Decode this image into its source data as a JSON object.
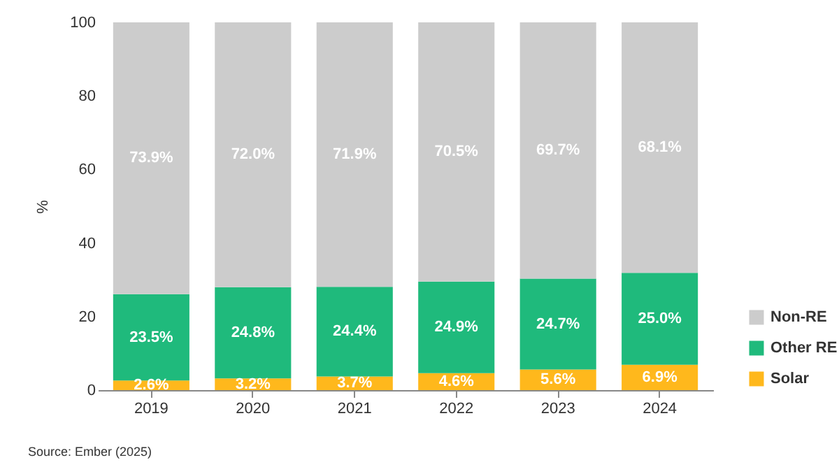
{
  "chart_data": {
    "type": "bar",
    "stacked": true,
    "ylabel": "%",
    "categories": [
      "2019",
      "2020",
      "2021",
      "2022",
      "2023",
      "2024"
    ],
    "series": [
      {
        "name": "Solar",
        "color": "#ffb81c",
        "values": [
          2.6,
          3.2,
          3.7,
          4.6,
          5.6,
          6.9
        ],
        "value_labels": [
          "2.6%",
          "3.2%",
          "3.7%",
          "4.6%",
          "5.6%",
          "6.9%"
        ]
      },
      {
        "name": "Other RE",
        "color": "#1fba7c",
        "values": [
          23.5,
          24.8,
          24.4,
          24.9,
          24.7,
          25.0
        ],
        "value_labels": [
          "23.5%",
          "24.8%",
          "24.4%",
          "24.9%",
          "24.7%",
          "25.0%"
        ]
      },
      {
        "name": "Non-RE",
        "color": "#cccccc",
        "values": [
          73.9,
          72.0,
          71.9,
          70.5,
          69.7,
          68.1
        ],
        "value_labels": [
          "73.9%",
          "72.0%",
          "71.9%",
          "70.5%",
          "69.7%",
          "68.1%"
        ]
      }
    ],
    "ylim": [
      0,
      100
    ],
    "yticks": [
      0,
      20,
      40,
      60,
      80,
      100
    ],
    "grid": false,
    "legend": "bottom right",
    "annotations": [
      "Source: Ember (2025)"
    ]
  }
}
